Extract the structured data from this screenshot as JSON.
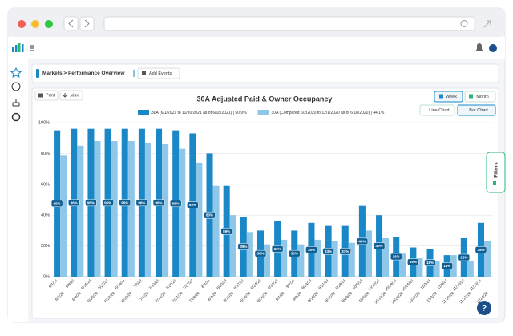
{
  "breadcrumb": "Markets > Performance Overview",
  "add_events": "Add Events",
  "toolbar": {
    "print": "Print",
    "export": ".xlsx"
  },
  "toggles": {
    "week": "Week",
    "month": "Month",
    "line_chart": "Line Chart",
    "bar_chart": "Bar Chart"
  },
  "filters": "Filters",
  "help": "?",
  "chart_data": {
    "type": "bar",
    "title": "30A Adjusted Paid & Owner Occupancy",
    "ylim": [
      0,
      100
    ],
    "yticks": [
      {
        "value": 0,
        "label": "0%"
      },
      {
        "value": 20,
        "label": "20%"
      },
      {
        "value": 40,
        "label": "40%"
      },
      {
        "value": 60,
        "label": "60%"
      },
      {
        "value": 80,
        "label": "80%"
      },
      {
        "value": 100,
        "label": "100%"
      }
    ],
    "grid": true,
    "series": [
      {
        "name": "30A (6/1/2021 to 11/30/2021 as of 6/18/2021) | 50.9%",
        "color": "#1a87c6",
        "x_labels": [
          "6/1/21",
          "6/8/21",
          "6/15/21",
          "6/22/21",
          "6/29/21",
          "7/6/21",
          "7/13/21",
          "7/20/21",
          "7/27/21",
          "8/3/21",
          "8/10/21",
          "8/17/21",
          "8/24/21",
          "8/31/21",
          "9/7/21",
          "9/14/21",
          "9/21/21",
          "9/28/21",
          "10/5/21",
          "10/12/21",
          "10/19/21",
          "10/26/21",
          "11/2/21",
          "11/9/21",
          "11/16/21",
          "11/23/21"
        ],
        "values": [
          95,
          96,
          96,
          96,
          96,
          96,
          96,
          95,
          93,
          80,
          59,
          39,
          30,
          36,
          30,
          35,
          33,
          33,
          46,
          40,
          26,
          19,
          18,
          14,
          25,
          35
        ],
        "value_labels": [
          "95%",
          "96%",
          "96%",
          "96%",
          "96%",
          "96%",
          "96%",
          "95%",
          "93%",
          "80%",
          "59%",
          "39%",
          "30%",
          "36%",
          "30%",
          "35%",
          "33%",
          "33%",
          "46%",
          "40%",
          "26%",
          "19%",
          "18%",
          "14%",
          "25%",
          "35%"
        ]
      },
      {
        "name": "30A (Compared 6/2/2020 to 12/1/2020 as of 6/18/2020) | 44.1%",
        "color": "#8fc7e8",
        "x_labels": [
          "6/2/20",
          "6/9/20",
          "6/16/20",
          "6/23/20",
          "6/30/20",
          "7/7/20",
          "7/14/20",
          "7/21/20",
          "7/28/20",
          "8/4/20",
          "8/11/20",
          "8/18/20",
          "8/25/20",
          "9/1/20",
          "9/8/20",
          "9/15/20",
          "9/22/20",
          "9/29/20",
          "10/6/20",
          "10/13/20",
          "10/20/20",
          "10/27/20",
          "11/3/20",
          "11/10/20",
          "11/17/20",
          "11/24/20"
        ],
        "values": [
          79,
          85,
          88,
          88,
          88,
          87,
          86,
          83,
          74,
          59,
          40,
          29,
          21,
          24,
          21,
          24,
          23,
          22,
          30,
          25,
          15,
          12,
          10,
          14,
          10,
          23
        ]
      }
    ]
  }
}
